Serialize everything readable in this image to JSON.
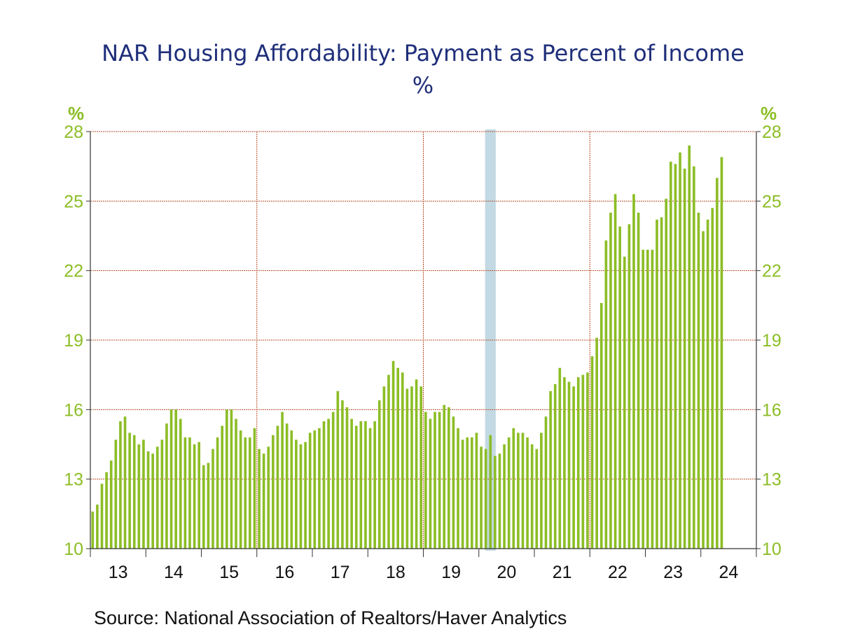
{
  "chart_data": {
    "type": "bar",
    "title": "NAR Housing Affordability: Payment as Percent of Income",
    "subtitle": "%",
    "ylabel_left": "%",
    "ylabel_right": "%",
    "ylim": [
      10,
      28
    ],
    "yticks": [
      10,
      13,
      16,
      19,
      22,
      25,
      28
    ],
    "x_start": "2013-01",
    "frequency": "monthly",
    "x_tick_labels": [
      "13",
      "14",
      "15",
      "16",
      "17",
      "18",
      "19",
      "20",
      "21",
      "22",
      "23",
      "24"
    ],
    "recession_shading": {
      "start": "2020-02",
      "end": "2020-04",
      "color": "#c3d9e3"
    },
    "bar_color": "#8cbd26",
    "grid": true,
    "values": [
      11.6,
      11.9,
      12.8,
      13.3,
      13.8,
      14.7,
      15.5,
      15.7,
      15.0,
      14.9,
      14.5,
      14.7,
      14.2,
      14.1,
      14.4,
      14.7,
      15.4,
      16.0,
      16.0,
      15.6,
      14.8,
      14.8,
      14.5,
      14.6,
      13.6,
      13.7,
      14.3,
      14.8,
      15.3,
      16.0,
      16.0,
      15.6,
      15.1,
      14.8,
      14.8,
      15.2,
      14.3,
      14.1,
      14.4,
      14.9,
      15.3,
      15.9,
      15.4,
      15.1,
      14.7,
      14.5,
      14.6,
      15.0,
      15.1,
      15.2,
      15.5,
      15.6,
      15.9,
      16.8,
      16.4,
      16.1,
      15.6,
      15.3,
      15.5,
      15.5,
      15.2,
      15.5,
      16.4,
      17.0,
      17.5,
      18.1,
      17.8,
      17.6,
      16.9,
      17.0,
      17.3,
      17.0,
      15.9,
      15.6,
      15.9,
      15.9,
      16.2,
      16.1,
      15.7,
      15.2,
      14.7,
      14.8,
      14.8,
      15.0,
      14.4,
      14.3,
      14.9,
      14.0,
      14.1,
      14.5,
      14.8,
      15.2,
      15.0,
      15.0,
      14.8,
      14.5,
      14.3,
      15.0,
      15.7,
      16.8,
      17.1,
      17.8,
      17.4,
      17.2,
      17.0,
      17.4,
      17.5,
      17.6,
      18.3,
      19.1,
      20.6,
      23.3,
      24.5,
      25.3,
      23.9,
      22.6,
      24.0,
      25.3,
      24.5,
      22.9,
      22.9,
      22.9,
      24.2,
      24.3,
      25.1,
      26.7,
      26.6,
      27.1,
      26.4,
      27.4,
      26.5,
      24.5,
      23.7,
      24.2,
      24.7,
      26.0,
      26.9
    ]
  },
  "labels": {
    "title": "NAR Housing Affordability: Payment as Percent of Income",
    "subtitle": "%",
    "unit_left": "%",
    "unit_right": "%",
    "source": "Source:  National Association of Realtors/Haver Analytics"
  },
  "colors": {
    "bar": "#8cbd26",
    "axis_text": "#8cbd26",
    "title": "#1f2f7a",
    "gridline": "#b5522d",
    "recession": "#c3d9e3"
  }
}
